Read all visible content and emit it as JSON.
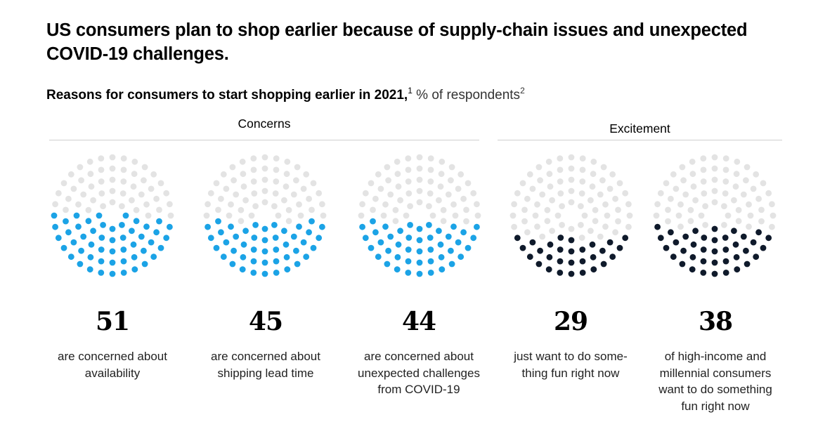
{
  "title": "US consumers plan to shop earlier because of supply-chain issues and unexpected COVID-19 challenges.",
  "subtitle": {
    "main": "Reasons for consumers to start shopping earlier in 2021,",
    "footnote1": "1",
    "unit": " % of respondents",
    "footnote2": "2"
  },
  "groups": [
    {
      "label": "Concerns"
    },
    {
      "label": "Excitement"
    }
  ],
  "colors": {
    "concerns": "#1ba3e6",
    "excitement": "#0f1a2b",
    "empty": "#e3e3e3"
  },
  "chart_data": {
    "type": "dot-circle",
    "title": "Reasons for consumers to start shopping earlier in 2021",
    "unit": "% of respondents",
    "ylim": [
      0,
      100
    ],
    "items": [
      {
        "group": "Concerns",
        "value": 51,
        "value_label": "51",
        "label_lines": [
          "are concerned about",
          "availability"
        ]
      },
      {
        "group": "Concerns",
        "value": 45,
        "value_label": "45",
        "label_lines": [
          "are concerned about",
          "shipping lead time"
        ]
      },
      {
        "group": "Concerns",
        "value": 44,
        "value_label": "44",
        "label_lines": [
          "are concerned about",
          "unexpected challenges",
          "from COVID-19"
        ]
      },
      {
        "group": "Excitement",
        "value": 29,
        "value_label": "29",
        "label_lines": [
          "just want to do some-",
          "thing fun right now"
        ]
      },
      {
        "group": "Excitement",
        "value": 38,
        "value_label": "38",
        "label_lines": [
          "of high-income and",
          "millennial consumers",
          "want to do something",
          "fun right now"
        ]
      }
    ]
  }
}
